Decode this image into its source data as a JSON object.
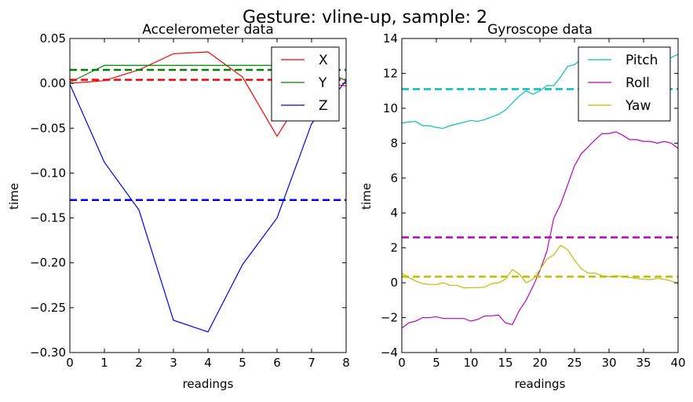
{
  "suptitle": "Gesture: vline-up, sample: 2",
  "colors": {
    "red": "#ff0000",
    "green": "#008000",
    "blue": "#0000ff",
    "cyan": "#00bfbf",
    "magenta": "#bf00bf",
    "yellow": "#bfbf00"
  },
  "chart_data": [
    {
      "type": "line",
      "title": "Accelerometer data",
      "xlabel": "readings",
      "ylabel": "time",
      "xlim": [
        0,
        8
      ],
      "ylim": [
        -0.3,
        0.05
      ],
      "xticks": [
        0,
        1,
        2,
        3,
        4,
        5,
        6,
        7,
        8
      ],
      "yticks": [
        0.05,
        0.0,
        -0.05,
        -0.1,
        -0.15,
        -0.2,
        -0.25,
        -0.3
      ],
      "ytick_labels": [
        "0.05",
        "0.00",
        "−0.05",
        "−0.10",
        "−0.15",
        "−0.20",
        "−0.25",
        "−0.30"
      ],
      "legend_position": "top-right",
      "x": [
        0,
        1,
        2,
        3,
        4,
        5,
        6,
        7,
        8
      ],
      "series": [
        {
          "name": "X",
          "color": "red",
          "values": [
            0.0,
            0.003,
            0.015,
            0.033,
            0.035,
            0.007,
            -0.059,
            0.003,
            -0.003
          ],
          "mean": 0.004
        },
        {
          "name": "Y",
          "color": "green",
          "values": [
            0.001,
            0.02,
            0.02,
            0.02,
            0.02,
            0.02,
            0.02,
            0.02,
            0.003
          ],
          "mean": 0.015
        },
        {
          "name": "Z",
          "color": "blue",
          "values": [
            -0.001,
            -0.088,
            -0.141,
            -0.264,
            -0.277,
            -0.202,
            -0.15,
            -0.045,
            0.003
          ],
          "mean": -0.13
        }
      ]
    },
    {
      "type": "line",
      "title": "Gyroscope data",
      "xlabel": "readings",
      "ylabel": "time",
      "xlim": [
        0,
        40
      ],
      "ylim": [
        -4,
        14
      ],
      "xticks": [
        0,
        5,
        10,
        15,
        20,
        25,
        30,
        35,
        40
      ],
      "yticks": [
        14,
        12,
        10,
        8,
        6,
        4,
        2,
        0,
        -2,
        -4
      ],
      "ytick_labels": [
        "14",
        "12",
        "10",
        "8",
        "6",
        "4",
        "2",
        "0",
        "−2",
        "−4"
      ],
      "legend_position": "top-right",
      "x": [
        0,
        1,
        2,
        3,
        4,
        5,
        6,
        7,
        8,
        9,
        10,
        11,
        12,
        13,
        14,
        15,
        16,
        17,
        18,
        19,
        20,
        21,
        22,
        23,
        24,
        25,
        26,
        27,
        28,
        29,
        30,
        31,
        32,
        33,
        34,
        35,
        36,
        37,
        38,
        39,
        40
      ],
      "series": [
        {
          "name": "Pitch",
          "color": "cyan",
          "mean": 11.1,
          "values": [
            9.15,
            9.22,
            9.25,
            9.0,
            9.0,
            8.9,
            8.85,
            9.0,
            9.1,
            9.2,
            9.3,
            9.25,
            9.35,
            9.5,
            9.65,
            9.9,
            10.3,
            10.7,
            11.0,
            10.8,
            11.0,
            11.3,
            11.3,
            11.8,
            12.4,
            12.5,
            12.8,
            13.0,
            13.2,
            13.3,
            13.3,
            13.2,
            13.3,
            13.1,
            13.0,
            12.9,
            12.8,
            12.7,
            12.8,
            12.9,
            13.1
          ]
        },
        {
          "name": "Roll",
          "color": "magenta",
          "mean": 2.6,
          "values": [
            -2.6,
            -2.3,
            -2.2,
            -2.0,
            -2.0,
            -1.95,
            -2.05,
            -2.05,
            -2.05,
            -2.05,
            -2.2,
            -2.1,
            -1.9,
            -1.9,
            -1.85,
            -2.3,
            -2.4,
            -1.6,
            -1.0,
            -0.2,
            0.7,
            1.8,
            3.7,
            4.5,
            5.6,
            6.7,
            7.4,
            7.8,
            8.2,
            8.55,
            8.55,
            8.65,
            8.45,
            8.2,
            8.2,
            8.1,
            8.1,
            8.0,
            8.1,
            8.0,
            7.7
          ]
        },
        {
          "name": "Yaw",
          "color": "yellow",
          "mean": 0.35,
          "values": [
            0.55,
            0.3,
            0.1,
            -0.05,
            -0.1,
            -0.1,
            0.0,
            -0.15,
            -0.15,
            -0.3,
            -0.28,
            -0.28,
            -0.25,
            -0.05,
            0.0,
            0.2,
            0.75,
            0.5,
            0.0,
            0.2,
            0.75,
            1.35,
            1.6,
            2.15,
            1.9,
            1.3,
            0.8,
            0.55,
            0.55,
            0.4,
            0.35,
            0.4,
            0.35,
            0.3,
            0.25,
            0.2,
            0.18,
            0.25,
            0.2,
            0.1,
            -0.05
          ]
        }
      ]
    }
  ]
}
